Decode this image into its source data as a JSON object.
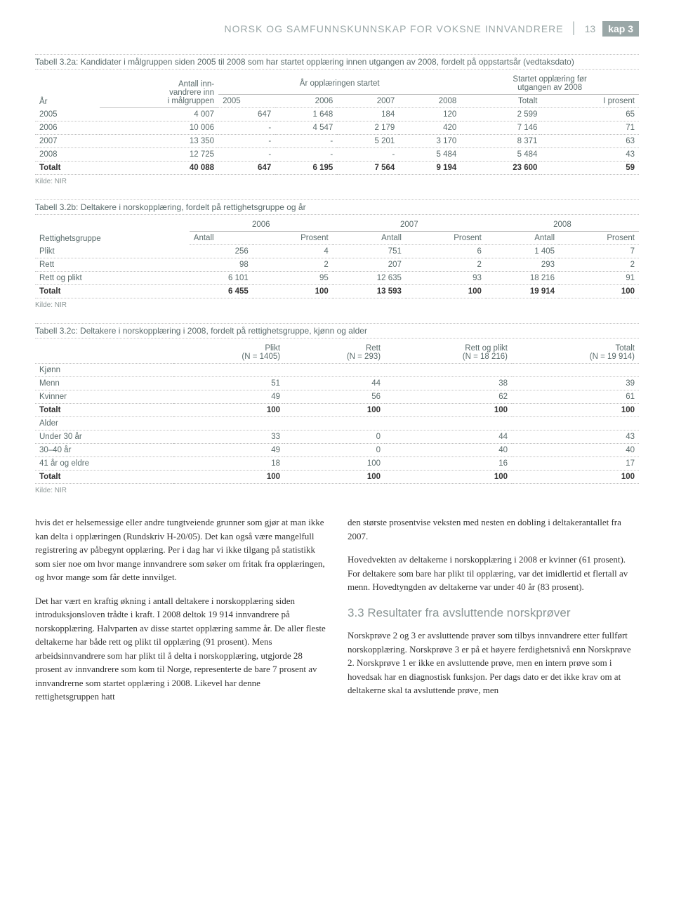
{
  "header": {
    "title": "NORSK OG SAMFUNNSKUNNSKAP FOR VOKSNE INNVANDRERE",
    "page": "13",
    "chapter": "kap 3"
  },
  "table_a": {
    "caption": "Tabell 3.2a: Kandidater i målgruppen siden 2005 til 2008 som har startet opplæring innen utgangen av 2008, fordelt på oppstartsår (vedtaksdato)",
    "col_year": "År",
    "col_antall": "Antall inn-\nvandrere inn\ni målgruppen",
    "group_mid": "År opplæringen startet",
    "group_right": "Startet opplæring før\nutgangen av 2008",
    "subcols": [
      "2005",
      "2006",
      "2007",
      "2008",
      "Totalt",
      "I prosent"
    ],
    "rows": [
      [
        "2005",
        "4 007",
        "647",
        "1 648",
        "184",
        "120",
        "2 599",
        "65"
      ],
      [
        "2006",
        "10 006",
        "-",
        "4 547",
        "2 179",
        "420",
        "7 146",
        "71"
      ],
      [
        "2007",
        "13 350",
        "-",
        "-",
        "5 201",
        "3 170",
        "8 371",
        "63"
      ],
      [
        "2008",
        "12 725",
        "-",
        "-",
        "-",
        "5 484",
        "5 484",
        "43"
      ]
    ],
    "total": [
      "Totalt",
      "40 088",
      "647",
      "6 195",
      "7 564",
      "9 194",
      "23 600",
      "59"
    ],
    "kilde": "Kilde: NIR"
  },
  "table_b": {
    "caption": "Tabell 3.2b: Deltakere i norskopplæring, fordelt på rettighetsgruppe og år",
    "col_group": "Rettighetsgruppe",
    "years": [
      "2006",
      "2007",
      "2008"
    ],
    "subcols": [
      "Antall",
      "Prosent",
      "Antall",
      "Prosent",
      "Antall",
      "Prosent"
    ],
    "rows": [
      [
        "Plikt",
        "256",
        "4",
        "751",
        "6",
        "1 405",
        "7"
      ],
      [
        "Rett",
        "98",
        "2",
        "207",
        "2",
        "293",
        "2"
      ],
      [
        "Rett og plikt",
        "6 101",
        "95",
        "12 635",
        "93",
        "18 216",
        "91"
      ]
    ],
    "total": [
      "Totalt",
      "6 455",
      "100",
      "13 593",
      "100",
      "19 914",
      "100"
    ],
    "kilde": "Kilde: NIR"
  },
  "table_c": {
    "caption": "Tabell 3.2c: Deltakere i norskopplæring i 2008, fordelt på rettighetsgruppe, kjønn og alder",
    "cols": [
      "",
      "Plikt\n(N = 1405)",
      "Rett\n(N = 293)",
      "Rett og plikt\n(N = 18 216)",
      "Totalt\n(N = 19 914)"
    ],
    "section1": "Kjønn",
    "rows1": [
      [
        "Menn",
        "51",
        "44",
        "38",
        "39"
      ],
      [
        "Kvinner",
        "49",
        "56",
        "62",
        "61"
      ]
    ],
    "total1": [
      "Totalt",
      "100",
      "100",
      "100",
      "100"
    ],
    "section2": "Alder",
    "rows2": [
      [
        "Under 30 år",
        "33",
        "0",
        "44",
        "43"
      ],
      [
        "30–40 år",
        "49",
        "0",
        "40",
        "40"
      ],
      [
        "41 år og eldre",
        "18",
        "100",
        "16",
        "17"
      ]
    ],
    "total2": [
      "Totalt",
      "100",
      "100",
      "100",
      "100"
    ],
    "kilde": "Kilde: NIR"
  },
  "body": {
    "left": {
      "p1": "hvis det er helsemessige eller andre tungtveiende grunner som gjør at man ikke kan delta i opplæringen (Rundskriv H-20/05). Det kan også være mangelfull registrering av påbegynt opplæring. Per i dag har vi ikke tilgang på statistikk som sier noe om hvor mange innvandrere som søker om fritak fra opplæringen, og hvor mange som får dette innvilget.",
      "p2": "Det har vært en kraftig økning i antall deltakere i norskopplæring siden introduksjonsloven trådte i kraft. I 2008 deltok 19 914 innvandrere på norskopplæring. Halvparten av disse startet opplæring samme år. De aller fleste deltakerne har både rett og plikt til opplæring (91 prosent). Mens arbeidsinnvandrere som har plikt til å delta i norskopplæring, utgjorde 28 prosent av innvandrere som kom til Norge, representerte de bare 7 prosent av innvandrerne som startet opplæring i 2008. Likevel har denne rettighetsgruppen hatt"
    },
    "right": {
      "p1": "den største prosentvise veksten med nesten en dobling i deltakerantallet fra 2007.",
      "p2": "Hovedvekten av deltakerne i norskopplæring i 2008 er kvinner (61 prosent). For deltakere som bare har plikt til opplæring, var det imidlertid et flertall av menn. Hovedtyngden av deltakerne var under 40 år (83 prosent).",
      "heading": "3.3 Resultater fra avsluttende norskprøver",
      "p3": "Norskprøve 2 og 3 er avsluttende prøver som tilbys innvandrere etter fullført norskopplæring. Norskprøve 3 er på et høyere ferdighetsnivå enn Norskprøve 2. Norskprøve 1 er ikke en avsluttende prøve, men en intern prøve som i hovedsak har en diagnostisk funksjon. Per dags dato er det ikke krav om at deltakerne skal ta avsluttende prøve, men"
    }
  }
}
